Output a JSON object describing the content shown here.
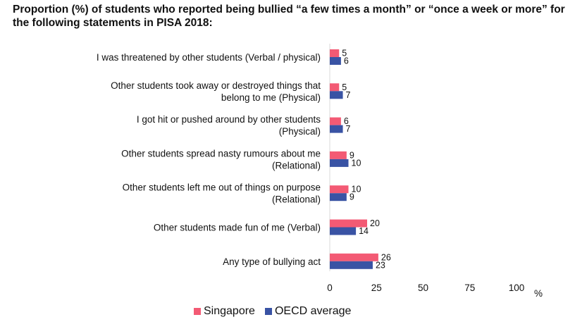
{
  "title": "Proportion (%) of students who reported being bullied “a few times a month” or “once a week or more” for the following statements in PISA 2018:",
  "colors": {
    "singapore": "#f35a74",
    "oecd": "#3953a4"
  },
  "chart_data": {
    "type": "bar",
    "orientation": "horizontal",
    "categories": [
      [
        "I was threatened by other students (Verbal / physical)"
      ],
      [
        "Other students took away or destroyed things that",
        "belong to me (Physical)"
      ],
      [
        "I got hit or pushed around by other students",
        "(Physical)"
      ],
      [
        "Other students spread nasty rumours about me",
        "(Relational)"
      ],
      [
        "Other students left me out of things on purpose",
        "(Relational)"
      ],
      [
        "Other students made fun of me (Verbal)"
      ],
      [
        "Any type of bullying act"
      ]
    ],
    "series": [
      {
        "name": "Singapore",
        "values": [
          5,
          5,
          6,
          9,
          10,
          20,
          26
        ]
      },
      {
        "name": "OECD average",
        "values": [
          6,
          7,
          7,
          10,
          9,
          14,
          23
        ]
      }
    ],
    "xlim": [
      0,
      100
    ],
    "xticks": [
      0,
      25,
      50,
      75,
      100
    ],
    "xlabel": "%",
    "legend_position": "bottom"
  }
}
